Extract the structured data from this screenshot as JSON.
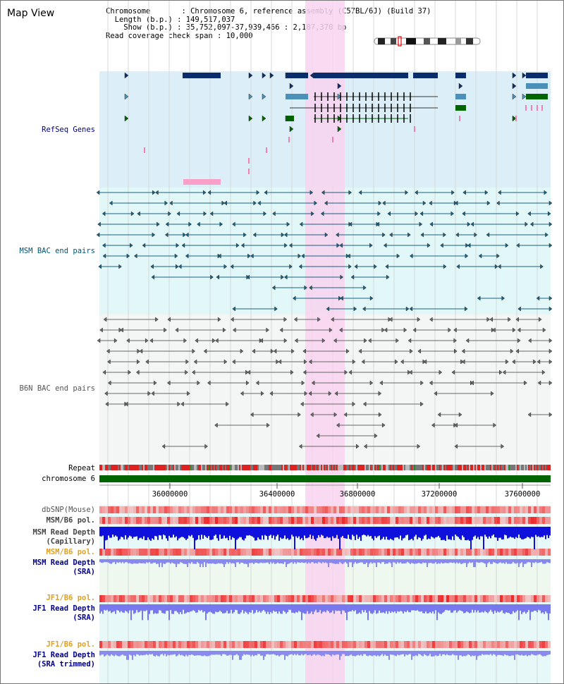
{
  "title": "Map View",
  "info": {
    "chromosome": "Chromosome       : Chromosome 6, reference assembly (C57BL/6J) (Build 37)",
    "length": "  Length (b.p.) : 149,517,037",
    "show": "    Show (b.p.) : 35,752,097-37,939,466 : 2,187,370 bp",
    "span": "Read coverage check span : 10,000"
  },
  "labels": {
    "refseq": "RefSeq Genes",
    "msm_bac": "MSM BAC end pairs",
    "b6n_bac": "B6N BAC end pairs",
    "repeat": "Repeat",
    "chromosome": "chromosome 6",
    "dbsnp": "dbSNP(Mouse)",
    "msm_b6_pol_1": "MSM/B6 pol.",
    "msm_depth_cap_1": "MSM Read Depth",
    "msm_depth_cap_2": "(Capillary)",
    "msm_b6_pol_2": "MSM/B6 pol.",
    "msm_depth_sra_1": "MSM Read Depth",
    "msm_depth_sra_2": "(SRA)",
    "jf1_pol_1": "JF1/B6 pol.",
    "jf1_depth_1": "JF1 Read Depth",
    "jf1_depth_2": "(SRA)",
    "jf1_pol_2": "JF1/B6 pol.",
    "jf1_trim_1": "JF1 Read Depth",
    "jf1_trim_2": "(SRA trimmed)"
  },
  "axis_ticks": [
    "36000000",
    "36400000",
    "36800000",
    "37200000",
    "37600000"
  ],
  "colors": {
    "refseq_bg": "#dceff8",
    "msm_bg": "#e2f8f8",
    "b6n_bg": "#f6f8f8",
    "highlight": "#f8d8f0",
    "chromosome_bar": "#006400",
    "label_blue": "#00008b",
    "label_teal": "#005577",
    "label_orange": "#e0a020"
  }
}
